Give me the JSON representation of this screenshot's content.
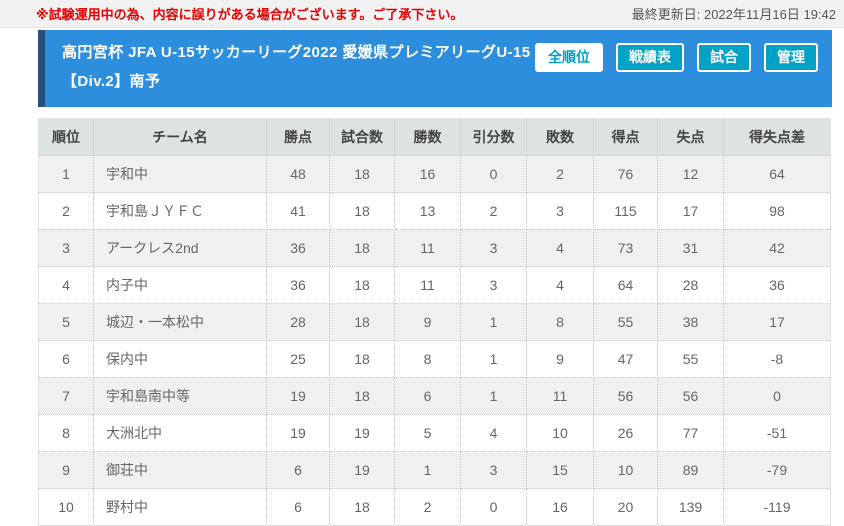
{
  "top_bar": {
    "notice": "※試験運用中の為、内容に誤りがある場合がございます。ご了承下さい。",
    "last_updated": "最終更新日: 2022年11月16日 19:42"
  },
  "header": {
    "title": "高円宮杯 JFA U-15サッカーリーグ2022 愛媛県プレミアリーグU-15 【Div.2】南予",
    "buttons": [
      {
        "label": "全順位",
        "active": true
      },
      {
        "label": "戦績表",
        "active": false
      },
      {
        "label": "試合",
        "active": false
      },
      {
        "label": "管理",
        "active": false
      }
    ]
  },
  "colors": {
    "header_bg": "#2e8ede",
    "header_left_border": "#25507f",
    "button_teal": "#00a2c5",
    "notice_red": "#e60000",
    "table_header_bg": "#dde3e0",
    "row_alt_bg": "#f0f0f0"
  },
  "table": {
    "columns": [
      "順位",
      "チーム名",
      "勝点",
      "試合数",
      "勝数",
      "引分数",
      "敗数",
      "得点",
      "失点",
      "得失点差"
    ],
    "rows": [
      [
        "1",
        "宇和中",
        "48",
        "18",
        "16",
        "0",
        "2",
        "76",
        "12",
        "64"
      ],
      [
        "2",
        "宇和島ＪＹＦＣ",
        "41",
        "18",
        "13",
        "2",
        "3",
        "115",
        "17",
        "98"
      ],
      [
        "3",
        "アークレス2nd",
        "36",
        "18",
        "11",
        "3",
        "4",
        "73",
        "31",
        "42"
      ],
      [
        "4",
        "内子中",
        "36",
        "18",
        "11",
        "3",
        "4",
        "64",
        "28",
        "36"
      ],
      [
        "5",
        "城辺・一本松中",
        "28",
        "18",
        "9",
        "1",
        "8",
        "55",
        "38",
        "17"
      ],
      [
        "6",
        "保内中",
        "25",
        "18",
        "8",
        "1",
        "9",
        "47",
        "55",
        "-8"
      ],
      [
        "7",
        "宇和島南中等",
        "19",
        "18",
        "6",
        "1",
        "11",
        "56",
        "56",
        "0"
      ],
      [
        "8",
        "大洲北中",
        "19",
        "19",
        "5",
        "4",
        "10",
        "26",
        "77",
        "-51"
      ],
      [
        "9",
        "御荘中",
        "6",
        "19",
        "1",
        "3",
        "15",
        "10",
        "89",
        "-79"
      ],
      [
        "10",
        "野村中",
        "6",
        "18",
        "2",
        "0",
        "16",
        "20",
        "139",
        "-119"
      ]
    ]
  }
}
